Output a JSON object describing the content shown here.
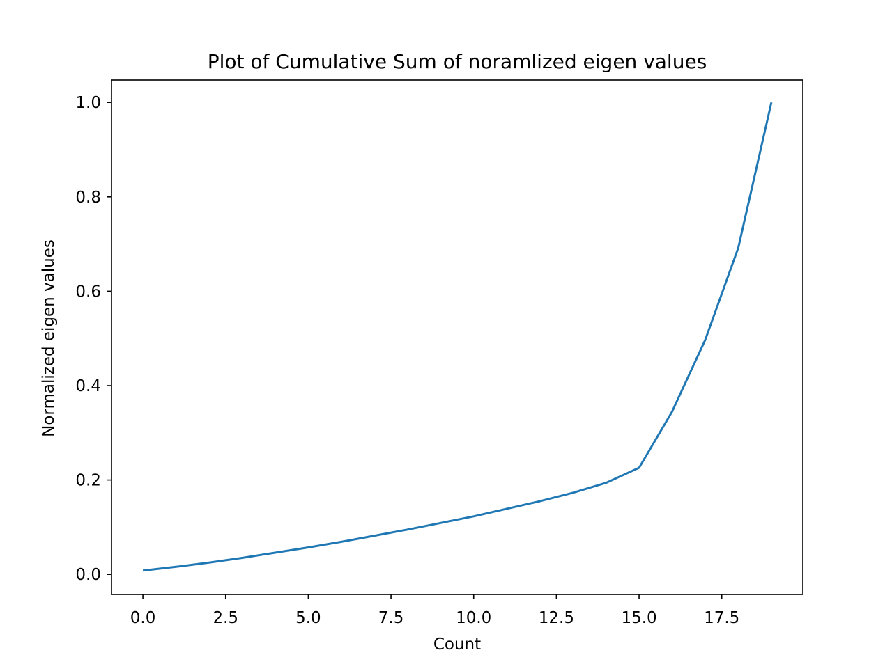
{
  "chart_data": {
    "type": "line",
    "title": "Plot of Cumulative Sum of noramlized eigen values",
    "xlabel": "Count",
    "ylabel": "Normalized eigen values",
    "xlim": [
      -0.95,
      19.95
    ],
    "ylim": [
      -0.0425,
      1.0475
    ],
    "xticks": [
      0.0,
      2.5,
      5.0,
      7.5,
      10.0,
      12.5,
      15.0,
      17.5
    ],
    "xtick_labels": [
      "0.0",
      "2.5",
      "5.0",
      "7.5",
      "10.0",
      "12.5",
      "15.0",
      "17.5"
    ],
    "yticks": [
      0.0,
      0.2,
      0.4,
      0.6,
      0.8,
      1.0
    ],
    "ytick_labels": [
      "0.0",
      "0.2",
      "0.4",
      "0.6",
      "0.8",
      "1.0"
    ],
    "grid": false,
    "series": [
      {
        "color": "#1f77b4",
        "x": [
          0,
          1,
          2,
          3,
          4,
          5,
          6,
          7,
          8,
          9,
          10,
          11,
          12,
          13,
          14,
          15,
          16,
          17,
          18,
          19
        ],
        "y": [
          0.008,
          0.016,
          0.025,
          0.035,
          0.046,
          0.057,
          0.069,
          0.082,
          0.095,
          0.109,
          0.123,
          0.139,
          0.155,
          0.173,
          0.194,
          0.226,
          0.345,
          0.497,
          0.692,
          1.0
        ]
      }
    ]
  }
}
